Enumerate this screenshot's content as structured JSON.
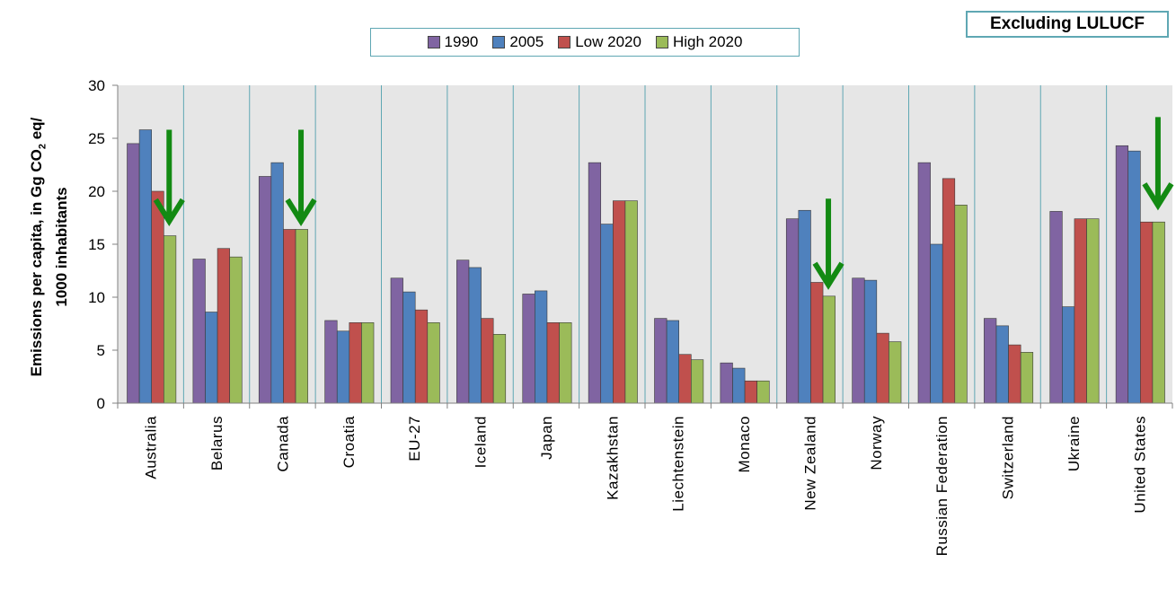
{
  "badge": "Excluding LULUCF",
  "ylabel_line1_a": "Emissions  per capita,  in Gg CO",
  "ylabel_line1_sub": "2",
  "ylabel_line1_b": " eq/",
  "ylabel_line2": "1000 inhabitants",
  "chart_data": {
    "type": "bar",
    "title": "",
    "ylabel": "Emissions per capita, in Gg CO2 eq/ 1000 inhabitants",
    "ylim": [
      0,
      30
    ],
    "yticks": [
      0,
      5,
      10,
      15,
      20,
      25,
      30
    ],
    "grid": false,
    "legend": "top-center",
    "categories": [
      "Australia",
      "Belarus",
      "Canada",
      "Croatia",
      "EU-27",
      "Iceland",
      "Japan",
      "Kazakhstan",
      "Liechtenstein",
      "Monaco",
      "New Zealand",
      "Norway",
      "Russian Federation",
      "Switzerland",
      "Ukraine",
      "United States"
    ],
    "series": [
      {
        "name": "1990",
        "color": "#8064a2",
        "values": [
          24.5,
          13.6,
          21.4,
          7.8,
          11.8,
          13.5,
          10.3,
          22.7,
          8.0,
          3.8,
          17.4,
          11.8,
          22.7,
          8.0,
          18.1,
          24.3
        ]
      },
      {
        "name": "2005",
        "color": "#4f81bd",
        "values": [
          25.8,
          8.6,
          22.7,
          6.8,
          10.5,
          12.8,
          10.6,
          16.9,
          7.8,
          3.3,
          18.2,
          11.6,
          15.0,
          7.3,
          9.1,
          23.8
        ]
      },
      {
        "name": "Low 2020",
        "color": "#c0504d",
        "values": [
          20.0,
          14.6,
          16.4,
          7.6,
          8.8,
          8.0,
          7.6,
          19.1,
          4.6,
          2.1,
          11.4,
          6.6,
          21.2,
          5.5,
          17.4,
          17.1
        ]
      },
      {
        "name": "High 2020",
        "color": "#9bbb59",
        "values": [
          15.8,
          13.8,
          16.4,
          7.6,
          7.6,
          6.5,
          7.6,
          19.1,
          4.1,
          2.1,
          10.1,
          5.8,
          18.7,
          4.8,
          17.4,
          17.1
        ]
      }
    ],
    "annotations": [
      {
        "type": "down-arrow",
        "category": "Australia",
        "from": 25.8,
        "to": 17.0
      },
      {
        "type": "down-arrow",
        "category": "Canada",
        "from": 25.8,
        "to": 17.0
      },
      {
        "type": "down-arrow",
        "category": "New Zealand",
        "from": 19.3,
        "to": 11.0
      },
      {
        "type": "down-arrow",
        "category": "United States",
        "from": 27.0,
        "to": 18.5
      }
    ]
  }
}
